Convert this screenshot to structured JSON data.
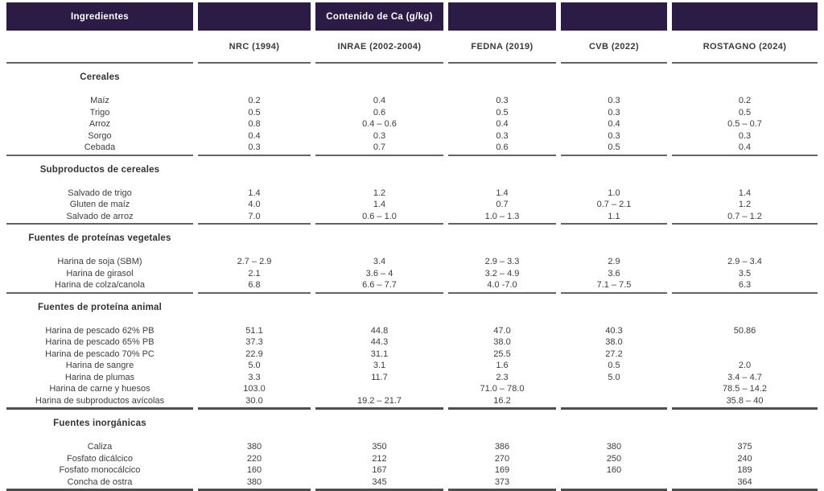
{
  "header": {
    "ingredients_label": "Ingredientes",
    "title": "Contenido de Ca (g/kg)"
  },
  "columns": [
    "NRC (1994)",
    "INRAE (2002-2004)",
    "FEDNA (2019)",
    "CVB (2022)",
    "ROSTAGNO (2024)"
  ],
  "sections": [
    {
      "title": "Cereales",
      "rows": [
        {
          "name": "Maíz",
          "values": [
            "0.2",
            "0.4",
            "0.3",
            "0.3",
            "0.2"
          ]
        },
        {
          "name": "Trigo",
          "values": [
            "0.5",
            "0.6",
            "0.5",
            "0.3",
            "0.5"
          ]
        },
        {
          "name": "Arroz",
          "values": [
            "0.8",
            "0.4 – 0.6",
            "0.4",
            "0.4",
            "0.5 – 0.7"
          ]
        },
        {
          "name": "Sorgo",
          "values": [
            "0.4",
            "0.3",
            "0.3",
            "0.3",
            "0.3"
          ]
        },
        {
          "name": "Cebada",
          "values": [
            "0.3",
            "0.7",
            "0.6",
            "0.5",
            "0.4"
          ]
        }
      ]
    },
    {
      "title": "Subproductos de cereales",
      "rows": [
        {
          "name": "Salvado de trigo",
          "values": [
            "1.4",
            "1.2",
            "1.4",
            "1.0",
            "1.4"
          ]
        },
        {
          "name": "Gluten de maíz",
          "values": [
            "4.0",
            "1.4",
            "0.7",
            "0.7 – 2.1",
            "1.2"
          ]
        },
        {
          "name": "Salvado de arroz",
          "values": [
            "7.0",
            "0.6 – 1.0",
            "1.0 – 1.3",
            "1.1",
            "0.7 – 1.2"
          ]
        }
      ]
    },
    {
      "title": "Fuentes de proteínas vegetales",
      "rows": [
        {
          "name": "Harina de soja (SBM)",
          "values": [
            "2.7 – 2.9",
            "3.4",
            "2.9 – 3.3",
            "2.9",
            "2.9 – 3.4"
          ]
        },
        {
          "name": "Harina de girasol",
          "values": [
            "2.1",
            "3.6 – 4",
            "3.2 – 4.9",
            "3.6",
            "3.5"
          ]
        },
        {
          "name": "Harina de colza/canola",
          "values": [
            "6.8",
            "6.6 – 7.7",
            "4.0 -7.0",
            "7.1 – 7.5",
            "6.3"
          ]
        }
      ]
    },
    {
      "title": "Fuentes de proteína animal",
      "rows": [
        {
          "name": "Harina de pescado 62% PB",
          "values": [
            "51.1",
            "44.8",
            "47.0",
            "40.3",
            "50.86"
          ]
        },
        {
          "name": "Harina de pescado 65% PB",
          "values": [
            "37.3",
            "44.3",
            "38.0",
            "38.0",
            ""
          ]
        },
        {
          "name": "Harina de pescado 70% PC",
          "values": [
            "22.9",
            "31.1",
            "25.5",
            "27.2",
            ""
          ]
        },
        {
          "name": "Harina de sangre",
          "values": [
            "5.0",
            "3.1",
            "1.6",
            "0.5",
            "2.0"
          ]
        },
        {
          "name": "Harina de plumas",
          "values": [
            "3.3",
            "11.7",
            "2.3",
            "5.0",
            "3.4 – 4.7"
          ]
        },
        {
          "name": "Harina de carne y huesos",
          "values": [
            "103.0",
            "",
            "71.0 – 78.0",
            "",
            "78.5 – 14.2"
          ]
        },
        {
          "name": "Harina de subproductos avícolas",
          "values": [
            "30.0",
            "19.2 – 21.7",
            "16.2",
            "",
            "35.8 – 40"
          ]
        }
      ]
    },
    {
      "title": "Fuentes inorgánicas",
      "rows": [
        {
          "name": "Caliza",
          "values": [
            "380",
            "350",
            "386",
            "380",
            "375"
          ]
        },
        {
          "name": "Fosfato dicálcico",
          "values": [
            "220",
            "212",
            "270",
            "250",
            "240"
          ]
        },
        {
          "name": "Fosfato monocálcico",
          "values": [
            "160",
            "167",
            "169",
            "160",
            "189"
          ]
        },
        {
          "name": "Concha de ostra",
          "values": [
            "380",
            "345",
            "373",
            "",
            "364"
          ]
        }
      ]
    }
  ],
  "colors": {
    "header_bg": "#2b1b45",
    "header_text": "#ffffff",
    "body_text": "#3d3d3d",
    "divider_line": "#636363"
  }
}
